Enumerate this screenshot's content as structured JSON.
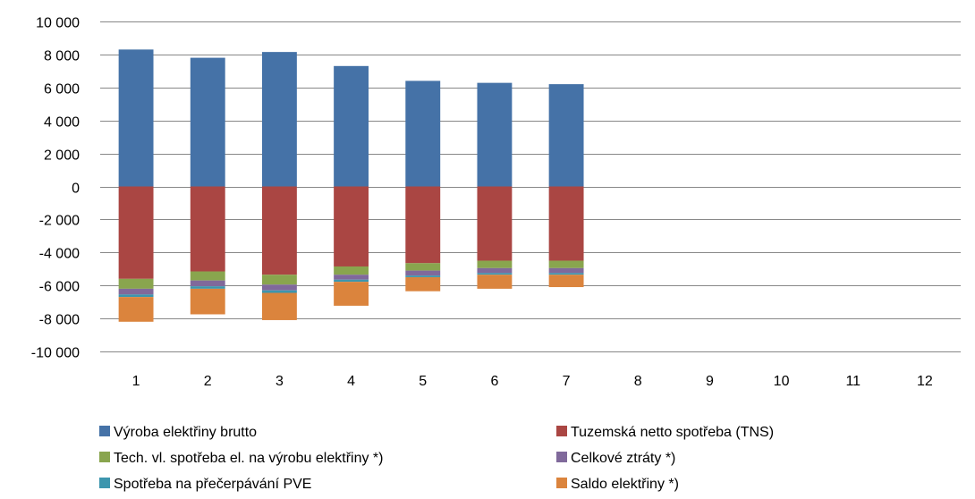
{
  "chart_data": {
    "type": "bar",
    "stacked": true,
    "categories": [
      "1",
      "2",
      "3",
      "4",
      "5",
      "6",
      "7",
      "8",
      "9",
      "10",
      "11",
      "12"
    ],
    "ylim": [
      -10000,
      10000
    ],
    "yticks": [
      10000,
      8000,
      6000,
      4000,
      2000,
      0,
      -2000,
      -4000,
      -6000,
      -8000,
      -10000
    ],
    "ytick_labels": [
      "10 000",
      "8 000",
      "6 000",
      "4 000",
      "2 000",
      "0",
      "-2 000",
      "-4 000",
      "-6 000",
      "-8 000",
      "-10 000"
    ],
    "grid": true,
    "legend_position": "bottom",
    "series": [
      {
        "name": "Výroba elektřiny brutto",
        "color": "#4572A7",
        "values": [
          8300,
          7800,
          8150,
          7300,
          6400,
          6280,
          6200,
          null,
          null,
          null,
          null,
          null
        ]
      },
      {
        "name": "Tuzemská netto spotřeba (TNS)",
        "color": "#AA4643",
        "values": [
          -5600,
          -5150,
          -5350,
          -4850,
          -4650,
          -4500,
          -4500,
          null,
          null,
          null,
          null,
          null
        ]
      },
      {
        "name": "Tech. vl. spotřeba el. na výrobu elektřiny *)",
        "color": "#89A54E",
        "values": [
          -600,
          -550,
          -600,
          -500,
          -450,
          -450,
          -450,
          null,
          null,
          null,
          null,
          null
        ]
      },
      {
        "name": "Celkové ztráty *)",
        "color": "#80699B",
        "values": [
          -350,
          -350,
          -350,
          -300,
          -300,
          -300,
          -300,
          null,
          null,
          null,
          null,
          null
        ]
      },
      {
        "name": "Spotřeba na přečerpávání PVE",
        "color": "#3D96AE",
        "values": [
          -150,
          -150,
          -150,
          -130,
          -100,
          -100,
          -100,
          null,
          null,
          null,
          null,
          null
        ]
      },
      {
        "name": "Saldo elektřiny *)",
        "color": "#DB843D",
        "values": [
          -1500,
          -1550,
          -1650,
          -1450,
          -850,
          -850,
          -750,
          null,
          null,
          null,
          null,
          null
        ]
      }
    ]
  }
}
